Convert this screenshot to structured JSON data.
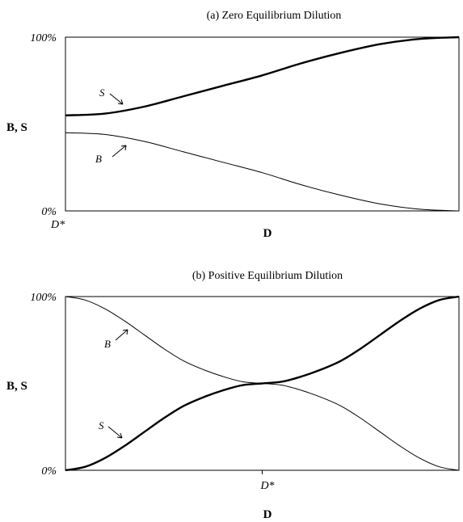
{
  "chart_data": [
    {
      "type": "line",
      "title": "(a) Zero Equilibrium Dilution",
      "xlabel": "D",
      "ylabel": "B, S",
      "yticks": [
        "100%",
        "0%"
      ],
      "ylim": [
        0,
        100
      ],
      "x_tick_label": "D*",
      "x_tick_at": 0,
      "xlim": [
        0,
        1
      ],
      "grid": false,
      "series": [
        {
          "name": "S",
          "x": [
            0,
            0.1,
            0.2,
            0.3,
            0.4,
            0.5,
            0.6,
            0.7,
            0.8,
            0.9,
            1.0
          ],
          "values": [
            55,
            56,
            60,
            66,
            72,
            78,
            85,
            91,
            96,
            99,
            100
          ]
        },
        {
          "name": "B",
          "x": [
            0,
            0.1,
            0.2,
            0.3,
            0.4,
            0.5,
            0.6,
            0.7,
            0.8,
            0.9,
            1.0
          ],
          "values": [
            45,
            44,
            40,
            34,
            28,
            22,
            15,
            9,
            4,
            1,
            0
          ]
        }
      ]
    },
    {
      "type": "line",
      "title": "(b) Positive Equilibrium Dilution",
      "xlabel": "D",
      "ylabel": "B, S",
      "yticks": [
        "100%",
        "0%"
      ],
      "ylim": [
        0,
        100
      ],
      "x_tick_label": "D*",
      "x_tick_at": 0.5,
      "xlim": [
        0,
        1
      ],
      "grid": false,
      "series": [
        {
          "name": "B",
          "x": [
            0,
            0.05,
            0.1,
            0.15,
            0.2,
            0.25,
            0.3,
            0.35,
            0.4,
            0.45,
            0.5,
            0.55,
            0.6,
            0.65,
            0.7,
            0.75,
            0.8,
            0.85,
            0.9,
            0.95,
            1.0
          ],
          "values": [
            100,
            98,
            93,
            86,
            78,
            70,
            63,
            58,
            54,
            51,
            50,
            49,
            46,
            42,
            37,
            30,
            22,
            14,
            7,
            2,
            0
          ]
        },
        {
          "name": "S",
          "x": [
            0,
            0.05,
            0.1,
            0.15,
            0.2,
            0.25,
            0.3,
            0.35,
            0.4,
            0.45,
            0.5,
            0.55,
            0.6,
            0.65,
            0.7,
            0.75,
            0.8,
            0.85,
            0.9,
            0.95,
            1.0
          ],
          "values": [
            0,
            2,
            7,
            14,
            22,
            30,
            37,
            42,
            46,
            49,
            50,
            51,
            54,
            58,
            63,
            70,
            78,
            86,
            93,
            98,
            100
          ]
        }
      ]
    }
  ]
}
